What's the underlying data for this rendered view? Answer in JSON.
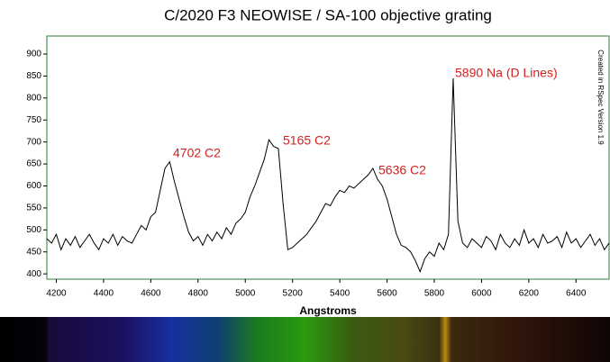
{
  "chart_data": {
    "type": "line",
    "title": "C/2020 F3 NEOWISE / SA-100 objective grating",
    "x_label": "Angstroms",
    "side_note": "Created in RSpec Version 1.9",
    "annotations": [
      "4702 C2",
      "5165 C2",
      "5636 C2",
      "5890 Na (D Lines)"
    ],
    "color": "#000000",
    "frame_color": "#2e7d32",
    "annotation_color": "#d42020",
    "grid": false,
    "xlim": [
      4160,
      6540
    ],
    "ylim": [
      388,
      941
    ],
    "xticks": [
      4200,
      4400,
      4600,
      4800,
      5000,
      5200,
      5400,
      5600,
      5800,
      6000,
      6200,
      6400
    ],
    "yticks": [
      400,
      450,
      500,
      550,
      600,
      650,
      700,
      750,
      800,
      850,
      900
    ],
    "x": [
      4160,
      4180,
      4200,
      4220,
      4240,
      4260,
      4280,
      4300,
      4320,
      4340,
      4360,
      4380,
      4400,
      4420,
      4440,
      4460,
      4480,
      4500,
      4520,
      4540,
      4560,
      4580,
      4600,
      4620,
      4640,
      4660,
      4680,
      4700,
      4720,
      4740,
      4760,
      4780,
      4800,
      4820,
      4840,
      4860,
      4880,
      4900,
      4920,
      4940,
      4960,
      4980,
      5000,
      5020,
      5040,
      5060,
      5080,
      5100,
      5120,
      5140,
      5160,
      5180,
      5200,
      5220,
      5240,
      5260,
      5280,
      5300,
      5320,
      5340,
      5360,
      5380,
      5400,
      5420,
      5440,
      5460,
      5480,
      5500,
      5520,
      5540,
      5560,
      5580,
      5600,
      5620,
      5640,
      5660,
      5680,
      5700,
      5720,
      5740,
      5760,
      5780,
      5800,
      5820,
      5840,
      5860,
      5880,
      5900,
      5920,
      5940,
      5960,
      5980,
      6000,
      6020,
      6040,
      6060,
      6080,
      6100,
      6120,
      6140,
      6160,
      6180,
      6200,
      6220,
      6240,
      6260,
      6280,
      6300,
      6320,
      6340,
      6360,
      6380,
      6400,
      6420,
      6440,
      6460,
      6480,
      6500,
      6520,
      6540
    ],
    "values": [
      480,
      470,
      490,
      455,
      480,
      465,
      485,
      460,
      475,
      490,
      470,
      455,
      480,
      470,
      490,
      465,
      485,
      475,
      470,
      490,
      510,
      500,
      530,
      540,
      590,
      640,
      655,
      610,
      570,
      530,
      495,
      475,
      485,
      465,
      490,
      475,
      495,
      480,
      505,
      490,
      515,
      525,
      540,
      575,
      600,
      630,
      660,
      705,
      690,
      685,
      560,
      455,
      460,
      470,
      480,
      490,
      505,
      520,
      540,
      560,
      555,
      575,
      590,
      585,
      600,
      595,
      605,
      615,
      625,
      640,
      615,
      600,
      570,
      530,
      490,
      465,
      460,
      450,
      430,
      405,
      435,
      450,
      440,
      470,
      455,
      490,
      845,
      520,
      470,
      460,
      480,
      470,
      460,
      485,
      475,
      455,
      490,
      470,
      460,
      480,
      465,
      500,
      470,
      480,
      460,
      490,
      470,
      475,
      485,
      460,
      495,
      470,
      480,
      460,
      475,
      490,
      465,
      480,
      455,
      470
    ]
  }
}
